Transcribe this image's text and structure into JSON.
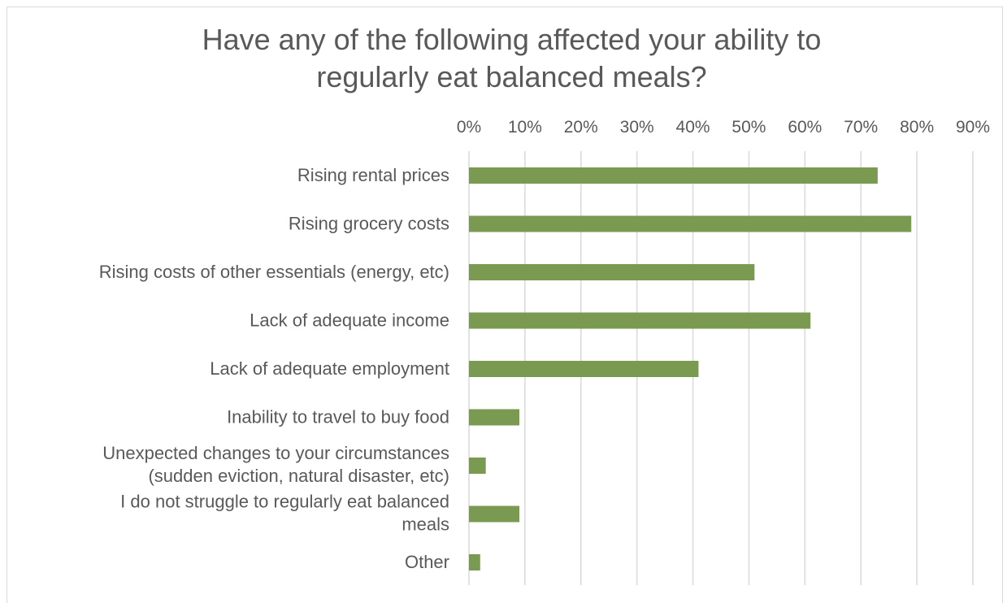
{
  "chart_data": {
    "type": "bar",
    "orientation": "horizontal",
    "title": "Have any of the following affected your ability to regularly eat balanced meals?",
    "title_lines": [
      "Have any of the following affected your ability to",
      "regularly eat balanced meals?"
    ],
    "categories": [
      [
        "Rising rental prices"
      ],
      [
        "Rising grocery costs"
      ],
      [
        "Rising costs of other essentials (energy, etc)"
      ],
      [
        "Lack of adequate income"
      ],
      [
        "Lack of adequate employment"
      ],
      [
        "Inability to travel to buy food"
      ],
      [
        "Unexpected changes to your circumstances",
        "(sudden eviction, natural disaster, etc)"
      ],
      [
        "I do not struggle to regularly eat balanced",
        "meals"
      ],
      [
        "Other"
      ]
    ],
    "values": [
      73,
      79,
      51,
      61,
      41,
      9,
      3,
      9,
      2
    ],
    "xlim": [
      0,
      90
    ],
    "x_ticks": [
      "0%",
      "10%",
      "20%",
      "30%",
      "40%",
      "50%",
      "60%",
      "70%",
      "80%",
      "90%"
    ],
    "x_axis_position": "top",
    "grid": true,
    "legend": "none",
    "bar_color": "#7a9a52",
    "grid_color": "#d9d9d9",
    "text_color": "#595959"
  }
}
